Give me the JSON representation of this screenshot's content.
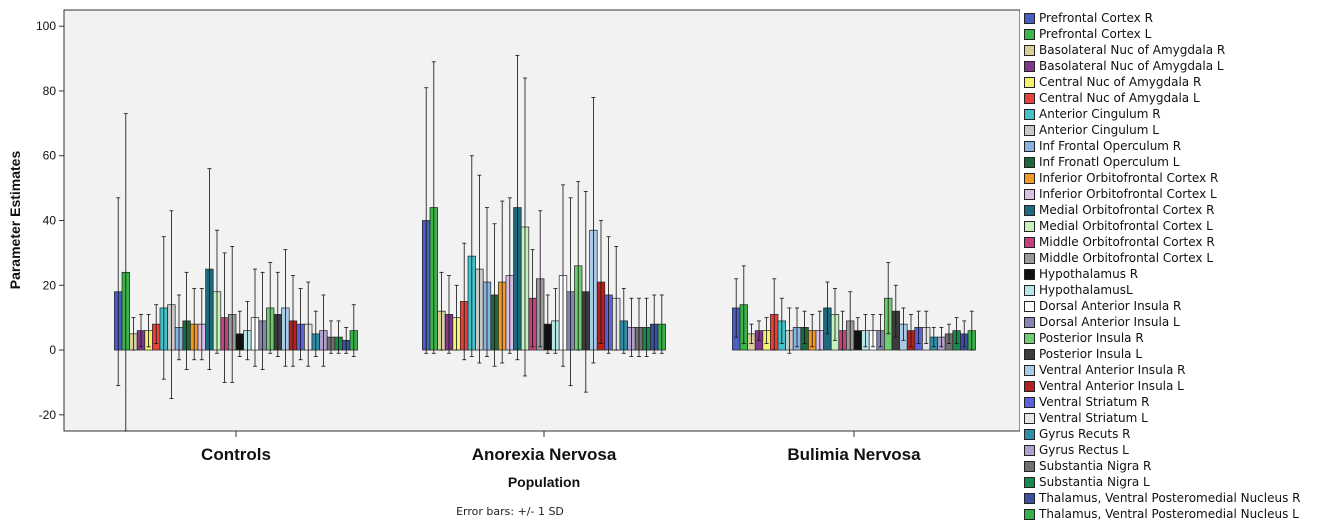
{
  "chart_data": {
    "type": "bar",
    "xlabel": "Population",
    "ylabel": "Parameter Estimates",
    "ylim": [
      -25,
      105
    ],
    "yticks": [
      -20,
      0,
      20,
      40,
      60,
      80,
      100
    ],
    "categories": [
      "Controls",
      "Anorexia Nervosa",
      "Bulimia Nervosa"
    ],
    "footnote": "Error bars: +/- 1 SD",
    "legend_position": "right",
    "series": [
      {
        "name": "Prefrontal Cortex R",
        "color": "#4a5fc1",
        "values": [
          18,
          40,
          13
        ],
        "sd": [
          29,
          41,
          9
        ]
      },
      {
        "name": "Prefrontal Cortex L",
        "color": "#3cb44b",
        "values": [
          24,
          44,
          14
        ],
        "sd": [
          49,
          45,
          12
        ]
      },
      {
        "name": "Basolateral Nuc of Amygdala R",
        "color": "#d9cf9c",
        "values": [
          5,
          12,
          5
        ],
        "sd": [
          5,
          12,
          3
        ]
      },
      {
        "name": "Basolateral Nuc of Amygdala L",
        "color": "#7d3a8c",
        "values": [
          6,
          11,
          6
        ],
        "sd": [
          5,
          12,
          3
        ]
      },
      {
        "name": "Central Nuc of Amygdala R",
        "color": "#f5f06e",
        "values": [
          6,
          10,
          6
        ],
        "sd": [
          5,
          10,
          4
        ]
      },
      {
        "name": "Central Nuc of Amygdala L",
        "color": "#e8423c",
        "values": [
          8,
          15,
          11
        ],
        "sd": [
          6,
          18,
          11
        ]
      },
      {
        "name": "Anterior Cingulum R",
        "color": "#44c2cc",
        "values": [
          13,
          29,
          9
        ],
        "sd": [
          22,
          31,
          7
        ]
      },
      {
        "name": "Anterior Cingulum L",
        "color": "#c8c8c8",
        "values": [
          14,
          25,
          6
        ],
        "sd": [
          29,
          29,
          7
        ]
      },
      {
        "name": "Inf Frontal Operculum R",
        "color": "#88b5e0",
        "values": [
          7,
          21,
          7
        ],
        "sd": [
          10,
          23,
          6
        ]
      },
      {
        "name": "Inf Fronatl Operculum L",
        "color": "#1b6b3a",
        "values": [
          9,
          17,
          7
        ],
        "sd": [
          15,
          22,
          5
        ]
      },
      {
        "name": "Inferior Orbitofrontal Cortex R",
        "color": "#f09b28",
        "values": [
          8,
          21,
          6
        ],
        "sd": [
          11,
          25,
          5
        ]
      },
      {
        "name": "Inferior Orbitofrontal Cortex L",
        "color": "#dcc0e8",
        "values": [
          8,
          23,
          6
        ],
        "sd": [
          11,
          24,
          6
        ]
      },
      {
        "name": "Medial Orbitofrontal Cortex R",
        "color": "#1e6a7d",
        "values": [
          25,
          44,
          13
        ],
        "sd": [
          31,
          47,
          8
        ]
      },
      {
        "name": "Medial Orbitofrontal Cortex L",
        "color": "#c8efc0",
        "values": [
          18,
          38,
          11
        ],
        "sd": [
          19,
          46,
          8
        ]
      },
      {
        "name": "Middle Orbitofrontal Cortex R",
        "color": "#c6407f",
        "values": [
          10,
          16,
          6
        ],
        "sd": [
          20,
          15,
          6
        ]
      },
      {
        "name": "Middle Orbitofrontal Cortex L",
        "color": "#9a9a9a",
        "values": [
          11,
          22,
          9
        ],
        "sd": [
          21,
          21,
          9
        ]
      },
      {
        "name": "Hypothalamus R",
        "color": "#111111",
        "values": [
          5,
          8,
          6
        ],
        "sd": [
          7,
          9,
          4
        ]
      },
      {
        "name": "HypothalamusL",
        "color": "#b8e6e6",
        "values": [
          6,
          9,
          6
        ],
        "sd": [
          9,
          10,
          5
        ]
      },
      {
        "name": "Dorsal Anterior Insula R",
        "color": "#ffffff",
        "values": [
          10,
          23,
          6
        ],
        "sd": [
          15,
          28,
          5
        ]
      },
      {
        "name": "Dorsal Anterior Insula L",
        "color": "#8585b5",
        "values": [
          9,
          18,
          6
        ],
        "sd": [
          15,
          29,
          5
        ]
      },
      {
        "name": "Posterior Insula R",
        "color": "#70cc70",
        "values": [
          13,
          26,
          16
        ],
        "sd": [
          14,
          26,
          11
        ]
      },
      {
        "name": "Posterior Insula L",
        "color": "#3c3c3c",
        "values": [
          11,
          18,
          12
        ],
        "sd": [
          13,
          31,
          8
        ]
      },
      {
        "name": "Ventral Anterior Insula R",
        "color": "#a9cbe8",
        "values": [
          13,
          37,
          8
        ],
        "sd": [
          18,
          41,
          5
        ]
      },
      {
        "name": "Ventral Anterior Insula L",
        "color": "#b52020",
        "values": [
          9,
          21,
          6
        ],
        "sd": [
          14,
          19,
          5
        ]
      },
      {
        "name": "Ventral Striatum R",
        "color": "#5a62e0",
        "values": [
          8,
          17,
          7
        ],
        "sd": [
          11,
          18,
          5
        ]
      },
      {
        "name": "Ventral Striatum L",
        "color": "#e6e6e6",
        "values": [
          8,
          16,
          7
        ],
        "sd": [
          13,
          16,
          5
        ]
      },
      {
        "name": "Gyrus Recuts R",
        "color": "#2e8fa6",
        "values": [
          5,
          9,
          4
        ],
        "sd": [
          7,
          10,
          3
        ]
      },
      {
        "name": "Gyrus Rectus L",
        "color": "#b0a0cc",
        "values": [
          6,
          7,
          4
        ],
        "sd": [
          11,
          9,
          3
        ]
      },
      {
        "name": "Substantia Nigra R",
        "color": "#707070",
        "values": [
          4,
          7,
          5
        ],
        "sd": [
          5,
          9,
          3
        ]
      },
      {
        "name": "Substantia Nigra L",
        "color": "#148a4b",
        "values": [
          4,
          7,
          6
        ],
        "sd": [
          5,
          9,
          4
        ]
      },
      {
        "name": "Thalamus, Ventral Posteromedial Nucleus R",
        "color": "#3d4fa3",
        "values": [
          3,
          8,
          5
        ],
        "sd": [
          4,
          9,
          4
        ]
      },
      {
        "name": "Thalamus, Ventral Posteromedial Nucleus L",
        "color": "#38b04c",
        "values": [
          6,
          8,
          6
        ],
        "sd": [
          8,
          9,
          6
        ]
      }
    ]
  }
}
